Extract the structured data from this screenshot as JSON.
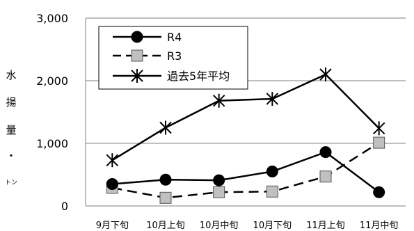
{
  "chart_data": {
    "type": "line",
    "categories": [
      "9月下旬",
      "10月上旬",
      "10月中旬",
      "10月下旬",
      "11月上旬",
      "11月中旬"
    ],
    "series": [
      {
        "name": "R4",
        "values": [
          350,
          420,
          410,
          550,
          860,
          220
        ],
        "marker": "circle",
        "line": "solid",
        "color": "#000000"
      },
      {
        "name": "R3",
        "values": [
          290,
          130,
          220,
          230,
          470,
          1010
        ],
        "marker": "square",
        "line": "dashed",
        "color": "#000000",
        "fill": "#c0c0c0"
      },
      {
        "name": "過去5年平均",
        "values": [
          730,
          1250,
          1680,
          1710,
          2100,
          1240
        ],
        "marker": "asterisk",
        "line": "solid",
        "color": "#000000"
      }
    ],
    "ylabel_chars": [
      "水",
      "揚",
      "量",
      "・",
      "トン"
    ],
    "ylim": [
      0,
      3000
    ],
    "yticks": [
      0,
      1000,
      2000,
      3000
    ],
    "ytick_labels": [
      "0",
      "1,000",
      "2,000",
      "3,000"
    ],
    "grid": true,
    "legend_position": "top-left"
  }
}
